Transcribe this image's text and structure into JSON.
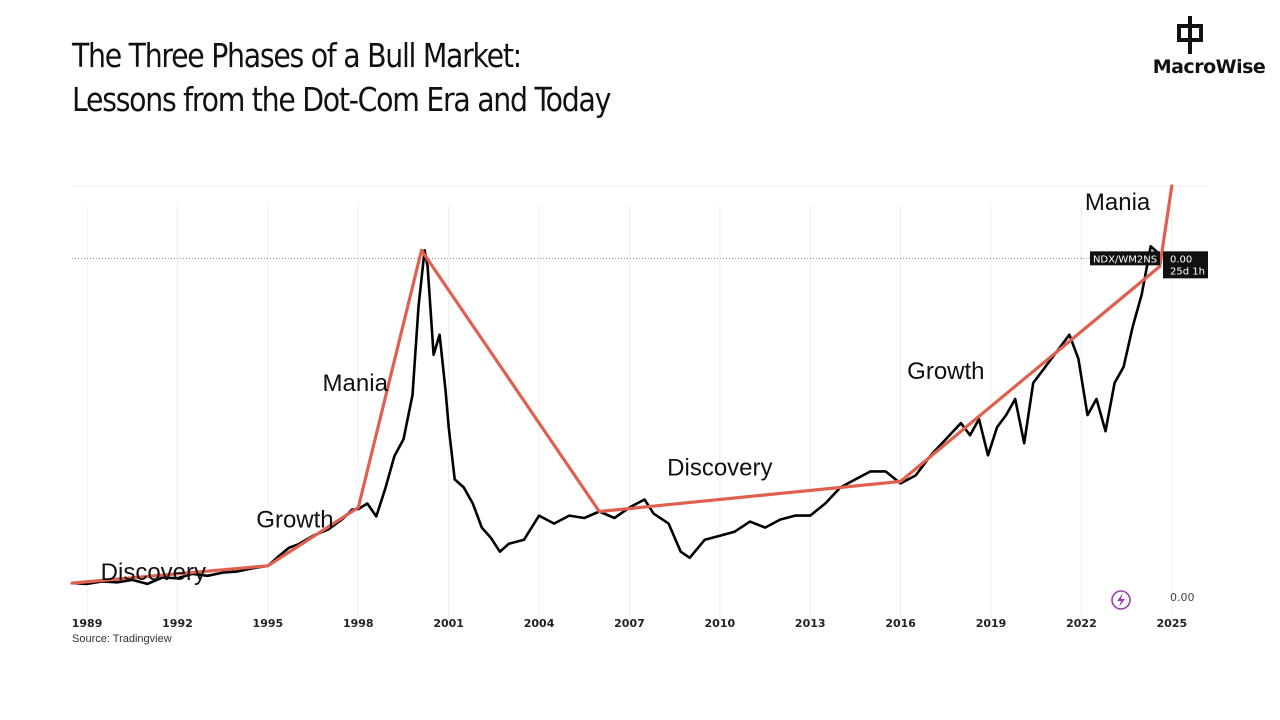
{
  "header": {
    "title_line1": "The Three Phases of a Bull Market:",
    "title_line2": "Lessons from the Dot-Com Era and Today"
  },
  "logo": {
    "text": "MacroWise"
  },
  "source": "Source: Tradingview",
  "colors": {
    "price": "#000000",
    "trend": "#e06050",
    "grid": "#eeeeee"
  },
  "chart_data": {
    "type": "line",
    "x_ticks": [
      "1989",
      "1992",
      "1995",
      "1998",
      "2001",
      "2004",
      "2007",
      "2010",
      "2013",
      "2016",
      "2019",
      "2022",
      "2025"
    ],
    "xlim": [
      1988.5,
      2026.2
    ],
    "ylim": [
      0,
      1.05
    ],
    "grid": "vertical",
    "ticker": "NDX/WM2NS",
    "last_value": "0.00",
    "countdown": "25d 1h",
    "axis_value": "0.00",
    "icon": "lightning-bolt-icon",
    "phase_labels": [
      {
        "text": "Discovery",
        "x": 1991.2,
        "y": 0.07
      },
      {
        "text": "Growth",
        "x": 1995.9,
        "y": 0.2
      },
      {
        "text": "Mania",
        "x": 1997.9,
        "y": 0.54
      },
      {
        "text": "Discovery",
        "x": 2010.0,
        "y": 0.33
      },
      {
        "text": "Growth",
        "x": 2017.5,
        "y": 0.57
      },
      {
        "text": "Mania",
        "x": 2023.2,
        "y": 0.99
      }
    ],
    "series": [
      {
        "values": [
          [
            1988.5,
            0.062
          ],
          [
            1989.0,
            0.06
          ],
          [
            1989.5,
            0.066
          ],
          [
            1990.0,
            0.064
          ],
          [
            1990.5,
            0.07
          ],
          [
            1991.0,
            0.06
          ],
          [
            1991.5,
            0.076
          ],
          [
            1992.0,
            0.074
          ],
          [
            1992.5,
            0.085
          ],
          [
            1993.0,
            0.08
          ],
          [
            1993.5,
            0.088
          ],
          [
            1994.0,
            0.091
          ],
          [
            1994.5,
            0.099
          ],
          [
            1995.0,
            0.105
          ],
          [
            1995.3,
            0.125
          ],
          [
            1995.7,
            0.15
          ],
          [
            1996.0,
            0.158
          ],
          [
            1996.5,
            0.18
          ],
          [
            1997.0,
            0.195
          ],
          [
            1997.5,
            0.223
          ],
          [
            1997.8,
            0.245
          ],
          [
            1998.0,
            0.246
          ],
          [
            1998.3,
            0.26
          ],
          [
            1998.6,
            0.228
          ],
          [
            1998.9,
            0.298
          ],
          [
            1999.2,
            0.378
          ],
          [
            1999.5,
            0.42
          ],
          [
            1999.8,
            0.53
          ],
          [
            2000.0,
            0.75
          ],
          [
            2000.2,
            0.89
          ],
          [
            2000.3,
            0.85
          ],
          [
            2000.5,
            0.63
          ],
          [
            2000.7,
            0.68
          ],
          [
            2000.9,
            0.54
          ],
          [
            2001.0,
            0.45
          ],
          [
            2001.2,
            0.32
          ],
          [
            2001.5,
            0.3
          ],
          [
            2001.8,
            0.26
          ],
          [
            2002.1,
            0.2
          ],
          [
            2002.4,
            0.175
          ],
          [
            2002.7,
            0.14
          ],
          [
            2003.0,
            0.16
          ],
          [
            2003.5,
            0.17
          ],
          [
            2004.0,
            0.23
          ],
          [
            2004.5,
            0.21
          ],
          [
            2005.0,
            0.23
          ],
          [
            2005.5,
            0.224
          ],
          [
            2006.0,
            0.24
          ],
          [
            2006.5,
            0.224
          ],
          [
            2007.0,
            0.25
          ],
          [
            2007.5,
            0.27
          ],
          [
            2007.8,
            0.235
          ],
          [
            2008.3,
            0.21
          ],
          [
            2008.7,
            0.14
          ],
          [
            2009.0,
            0.125
          ],
          [
            2009.5,
            0.17
          ],
          [
            2010.0,
            0.18
          ],
          [
            2010.5,
            0.19
          ],
          [
            2011.0,
            0.215
          ],
          [
            2011.5,
            0.2
          ],
          [
            2012.0,
            0.22
          ],
          [
            2012.5,
            0.23
          ],
          [
            2013.0,
            0.23
          ],
          [
            2013.5,
            0.26
          ],
          [
            2014.0,
            0.3
          ],
          [
            2014.5,
            0.32
          ],
          [
            2015.0,
            0.34
          ],
          [
            2015.5,
            0.34
          ],
          [
            2016.0,
            0.31
          ],
          [
            2016.5,
            0.33
          ],
          [
            2017.0,
            0.38
          ],
          [
            2017.5,
            0.42
          ],
          [
            2018.0,
            0.46
          ],
          [
            2018.3,
            0.43
          ],
          [
            2018.6,
            0.47
          ],
          [
            2018.9,
            0.38
          ],
          [
            2019.2,
            0.45
          ],
          [
            2019.5,
            0.48
          ],
          [
            2019.8,
            0.52
          ],
          [
            2020.1,
            0.41
          ],
          [
            2020.4,
            0.56
          ],
          [
            2020.7,
            0.59
          ],
          [
            2021.0,
            0.62
          ],
          [
            2021.3,
            0.65
          ],
          [
            2021.6,
            0.68
          ],
          [
            2021.9,
            0.62
          ],
          [
            2022.2,
            0.48
          ],
          [
            2022.5,
            0.52
          ],
          [
            2022.8,
            0.44
          ],
          [
            2023.1,
            0.56
          ],
          [
            2023.4,
            0.6
          ],
          [
            2023.7,
            0.7
          ],
          [
            2024.0,
            0.78
          ],
          [
            2024.3,
            0.9
          ],
          [
            2024.6,
            0.88
          ]
        ]
      },
      {
        "values": [
          [
            1988.5,
            0.062
          ],
          [
            1995.0,
            0.105
          ],
          [
            1998.0,
            0.25
          ],
          [
            2000.1,
            0.89
          ],
          [
            2006.0,
            0.24
          ],
          [
            2016.0,
            0.315
          ],
          [
            2024.6,
            0.85
          ],
          [
            2025.0,
            1.05
          ]
        ]
      }
    ]
  }
}
